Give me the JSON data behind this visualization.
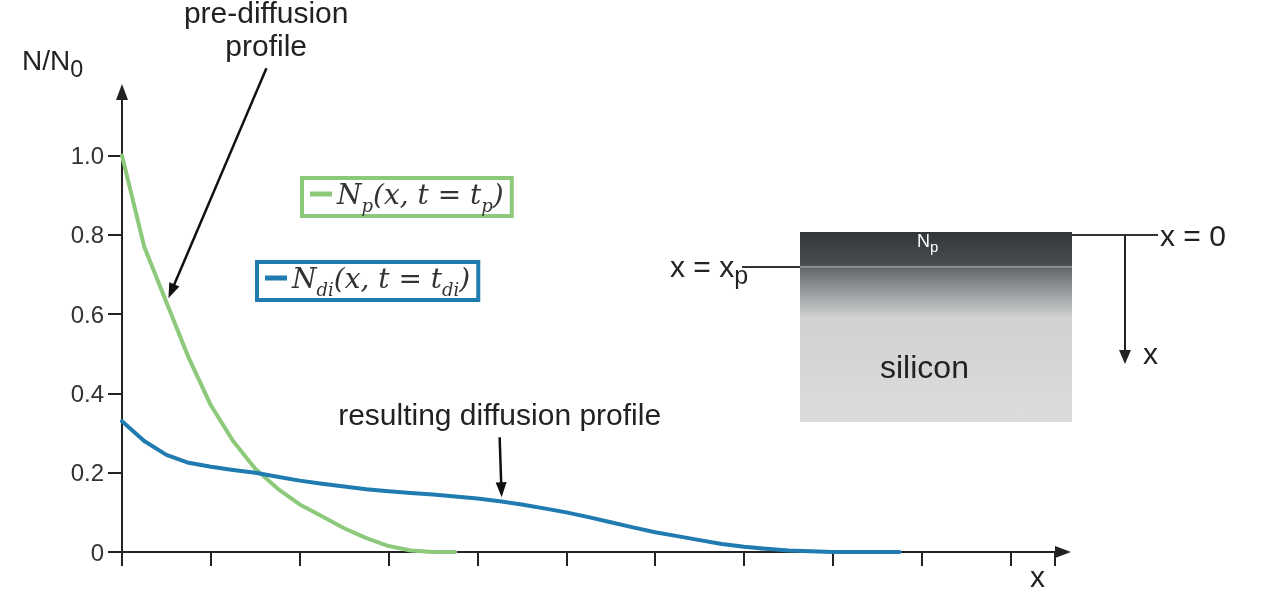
{
  "chart_data": {
    "type": "line",
    "ylabel": "N/N$_{0}$",
    "xlabel": "x",
    "categories": [
      null,
      null,
      null,
      null,
      null,
      null,
      null,
      null,
      null,
      null,
      null,
      null,
      null,
      null,
      null,
      null,
      null,
      null,
      null,
      null,
      null,
      null,
      null,
      null,
      null,
      null,
      null,
      null,
      null,
      null,
      null,
      null,
      null,
      null,
      null,
      null,
      null,
      null,
      null,
      null,
      null,
      null,
      null
    ],
    "ylim": [
      0,
      1.14
    ],
    "yticks": [
      0,
      0.2,
      0.4,
      0.6,
      0.8,
      {
        "value": 1,
        "label": "1.0"
      }
    ],
    "grid": false,
    "legend": "top left",
    "marker": "none",
    "line_style": "solid",
    "series": [
      {
        "name": "N$_{p}$(x, t = t$_{p}$)",
        "color": "#8cc97a",
        "values": [
          1.0,
          0.77,
          0.63,
          0.49,
          0.37,
          0.28,
          0.21,
          0.16,
          0.12,
          0.09,
          0.06,
          0.035,
          0.015,
          0.004,
          0.0,
          0.0,
          null,
          null,
          null,
          null,
          null,
          null,
          null,
          null,
          null,
          null,
          null,
          null,
          null,
          null,
          null,
          null,
          null,
          null,
          null,
          null,
          null,
          null,
          null,
          null,
          null,
          null,
          null
        ]
      },
      {
        "name": "N$_{di}$(x, t = t$_{di}$)",
        "color": "#1f7bb0",
        "values": [
          0.33,
          0.28,
          0.245,
          0.225,
          0.215,
          0.207,
          0.2,
          0.19,
          0.18,
          0.172,
          0.165,
          0.158,
          0.153,
          0.149,
          0.145,
          0.14,
          0.135,
          0.128,
          0.12,
          0.11,
          0.1,
          0.088,
          0.075,
          0.062,
          0.05,
          0.04,
          0.03,
          0.02,
          0.013,
          0.008,
          0.004,
          0.002,
          0.0,
          0.0,
          0.0,
          0.0,
          null,
          null,
          null,
          null,
          null,
          null,
          null
        ]
      }
    ],
    "annotations": [
      "pre-diffusion\nprofile",
      "resulting diffusion profile",
      "x = x$_{p}$",
      "x = 0",
      "N$_{p}$",
      "silicon",
      "x"
    ]
  }
}
